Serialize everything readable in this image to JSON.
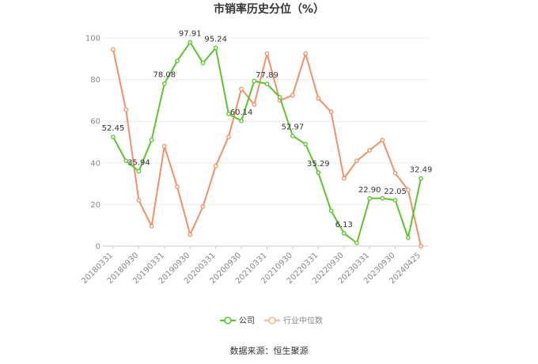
{
  "chart_data": {
    "type": "line",
    "title": "市销率历史分位（%）",
    "ylim": [
      0,
      100
    ],
    "yticks": [
      0,
      20,
      40,
      60,
      80,
      100
    ],
    "grid": true,
    "legend_position": "bottom",
    "x_tick_labels": [
      "20180331",
      "20180930",
      "20190331",
      "20190930",
      "20200331",
      "20200930",
      "20210331",
      "20210930",
      "20220331",
      "20220930",
      "20230331",
      "20230930",
      "20240425"
    ],
    "series": [
      {
        "name": "公司",
        "color": "#5cc42e",
        "values": [
          52.45,
          41,
          35.94,
          51,
          78.08,
          89,
          97.91,
          88,
          95.24,
          63.5,
          60.14,
          79.3,
          77.89,
          71.5,
          52.97,
          49,
          35.29,
          17,
          6.13,
          1.5,
          22.9,
          23,
          22.05,
          4,
          32.49
        ],
        "point_labels": {
          "0": "52.45",
          "2": "35.94",
          "4": "78.08",
          "6": "97.91",
          "8": "95.24",
          "10": "60.14",
          "12": "77.89",
          "14": "52.97",
          "16": "35.29",
          "18": "6.13",
          "20": "22.90",
          "22": "22.05",
          "24": "32.49"
        }
      },
      {
        "name": "行业中位数",
        "color": "#f39166",
        "values": [
          94.5,
          65.5,
          22,
          9.5,
          48,
          28.5,
          5.5,
          19,
          38.5,
          52.5,
          75.5,
          68,
          92.5,
          70,
          72.5,
          92.5,
          71,
          64.5,
          32.5,
          41,
          46,
          51,
          35,
          27,
          0
        ]
      }
    ],
    "source": "数据来源：恒生聚源"
  }
}
